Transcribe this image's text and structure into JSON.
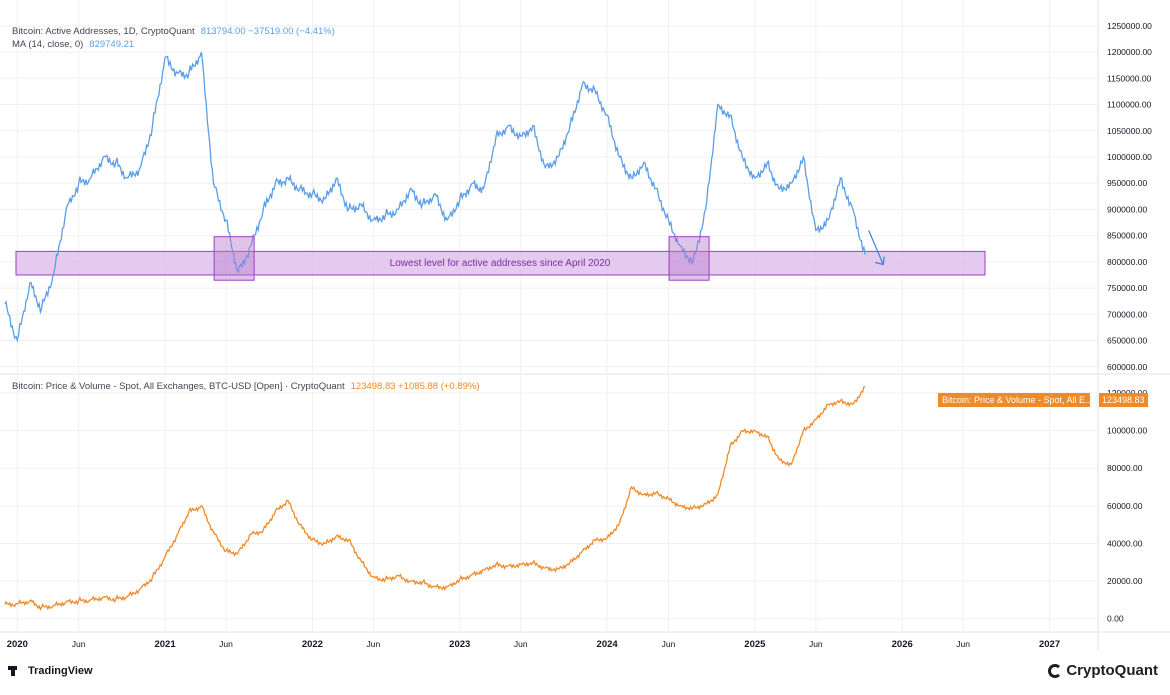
{
  "legend_top": {
    "line1_name": "Bitcoin: Active Addresses, 1D, CryptoQuant",
    "line1_vals": "813794.00  −37519.00 (−4.41%)",
    "line2_name": "MA (14, close, 0)",
    "line2_vals": "829749.21"
  },
  "legend_bottom": {
    "name": "Bitcoin: Price & Volume - Spot, All Exchanges, BTC-USD [Open] · CryptoQuant",
    "vals": "123498.83  +1085.88 (+0.89%)"
  },
  "price_tag": {
    "label": "Bitcoin: Price & Volume - Spot, All E...",
    "value": "123498.83"
  },
  "annotation": "Lowest level for active addresses since April 2020",
  "footer": {
    "left": "TradingView",
    "right": "CryptoQuant"
  },
  "colors": {
    "addresses": "#5b9ee6",
    "price": "#f08a26",
    "band_fill": "#dcb8ea",
    "band_stroke": "#9c3fc2",
    "grid": "#eef0f3",
    "axis_text": "#131722"
  },
  "chart_data": [
    {
      "type": "line",
      "series": [
        {
          "x": [
            "2019-12-01",
            "2020-01-01",
            "2020-02-01",
            "2020-03-01",
            "2020-04-01",
            "2020-05-01",
            "2020-06-01",
            "2020-07-01",
            "2020-08-01",
            "2020-09-01",
            "2020-10-01",
            "2020-11-01",
            "2020-12-01",
            "2021-01-01",
            "2021-02-01",
            "2021-03-01",
            "2021-04-01",
            "2021-05-01",
            "2021-06-01",
            "2021-07-01",
            "2021-08-01",
            "2021-09-01",
            "2021-10-01",
            "2021-11-01",
            "2021-12-01",
            "2022-01-01",
            "2022-02-01",
            "2022-03-01",
            "2022-04-01",
            "2022-05-01",
            "2022-06-01",
            "2022-07-01",
            "2022-08-01",
            "2022-09-01",
            "2022-10-01",
            "2022-11-01",
            "2022-12-01",
            "2023-01-01",
            "2023-02-01",
            "2023-03-01",
            "2023-04-01",
            "2023-05-01",
            "2023-06-01",
            "2023-07-01",
            "2023-08-01",
            "2023-09-01",
            "2023-10-01",
            "2023-11-01",
            "2023-12-01",
            "2024-01-01",
            "2024-02-01",
            "2024-03-01",
            "2024-04-01",
            "2024-05-01",
            "2024-06-01",
            "2024-07-01",
            "2024-08-01",
            "2024-09-01",
            "2024-10-01",
            "2024-11-01",
            "2024-12-01",
            "2025-01-01",
            "2025-02-01",
            "2025-03-01",
            "2025-04-01",
            "2025-05-01",
            "2025-06-01",
            "2025-07-01",
            "2025-08-01",
            "2025-09-01",
            "2025-10-01"
          ],
          "values": [
            720000,
            650000,
            760000,
            710000,
            780000,
            900000,
            950000,
            960000,
            1000000,
            990000,
            960000,
            980000,
            1060000,
            1190000,
            1160000,
            1160000,
            1200000,
            950000,
            880000,
            780000,
            830000,
            900000,
            950000,
            960000,
            940000,
            930000,
            920000,
            960000,
            900000,
            910000,
            880000,
            890000,
            900000,
            940000,
            910000,
            930000,
            880000,
            920000,
            950000,
            940000,
            1040000,
            1060000,
            1040000,
            1060000,
            980000,
            1000000,
            1060000,
            1140000,
            1130000,
            1080000,
            1000000,
            960000,
            990000,
            940000,
            880000,
            830000,
            800000,
            900000,
            1100000,
            1080000,
            1000000,
            960000,
            990000,
            940000,
            950000,
            1000000,
            860000,
            880000,
            960000,
            900000,
            813794
          ]
        }
      ],
      "yticks": [
        600000,
        650000,
        700000,
        750000,
        800000,
        850000,
        900000,
        950000,
        1000000,
        1050000,
        1100000,
        1150000,
        1200000,
        1250000
      ],
      "ylim": [
        590000,
        1265000
      ],
      "band": [
        775000,
        820000
      ]
    },
    {
      "type": "line",
      "series": [
        {
          "x": [
            "2019-12-01",
            "2020-01-01",
            "2020-02-01",
            "2020-03-01",
            "2020-04-01",
            "2020-05-01",
            "2020-06-01",
            "2020-07-01",
            "2020-08-01",
            "2020-09-01",
            "2020-10-01",
            "2020-11-01",
            "2020-12-01",
            "2021-01-01",
            "2021-02-01",
            "2021-03-01",
            "2021-04-01",
            "2021-05-01",
            "2021-06-01",
            "2021-07-01",
            "2021-08-01",
            "2021-09-01",
            "2021-10-01",
            "2021-11-01",
            "2021-12-01",
            "2022-01-01",
            "2022-02-01",
            "2022-03-01",
            "2022-04-01",
            "2022-05-01",
            "2022-06-01",
            "2022-07-01",
            "2022-08-01",
            "2022-09-01",
            "2022-10-01",
            "2022-11-01",
            "2022-12-01",
            "2023-01-01",
            "2023-02-01",
            "2023-03-01",
            "2023-04-01",
            "2023-05-01",
            "2023-06-01",
            "2023-07-01",
            "2023-08-01",
            "2023-09-01",
            "2023-10-01",
            "2023-11-01",
            "2023-12-01",
            "2024-01-01",
            "2024-02-01",
            "2024-03-01",
            "2024-04-01",
            "2024-05-01",
            "2024-06-01",
            "2024-07-01",
            "2024-08-01",
            "2024-09-01",
            "2024-10-01",
            "2024-11-01",
            "2024-12-01",
            "2025-01-01",
            "2025-02-01",
            "2025-03-01",
            "2025-04-01",
            "2025-05-01",
            "2025-06-01",
            "2025-07-01",
            "2025-08-01",
            "2025-09-01",
            "2025-10-01"
          ],
          "values": [
            7500,
            8000,
            9500,
            6000,
            7000,
            9000,
            9500,
            10000,
            11500,
            10500,
            12000,
            16000,
            22000,
            33000,
            45000,
            57000,
            60000,
            46000,
            36000,
            35000,
            45000,
            47000,
            57000,
            63000,
            50000,
            42000,
            40000,
            44000,
            42000,
            31000,
            22000,
            21000,
            23000,
            20000,
            19500,
            17000,
            17000,
            21000,
            23500,
            26000,
            29000,
            28000,
            29000,
            30000,
            27000,
            26500,
            30000,
            36000,
            42000,
            43000,
            51000,
            70000,
            66000,
            67000,
            64000,
            60000,
            59000,
            61000,
            66000,
            92000,
            100000,
            100000,
            97000,
            85000,
            82000,
            100000,
            106000,
            114000,
            116000,
            114000,
            123499
          ]
        }
      ],
      "yticks": [
        0,
        20000,
        40000,
        60000,
        80000,
        100000,
        120000
      ],
      "ylim": [
        -6000,
        129000
      ]
    }
  ],
  "x_axis": {
    "ticks": [
      {
        "label": "2020",
        "date": "2020-01-01"
      },
      {
        "label": "Jun",
        "date": "2020-06-01"
      },
      {
        "label": "2021",
        "date": "2021-01-01"
      },
      {
        "label": "Jun",
        "date": "2021-06-01"
      },
      {
        "label": "2022",
        "date": "2022-01-01"
      },
      {
        "label": "Jun",
        "date": "2022-06-01"
      },
      {
        "label": "2023",
        "date": "2023-01-01"
      },
      {
        "label": "Jun",
        "date": "2023-06-01"
      },
      {
        "label": "2024",
        "date": "2024-01-01"
      },
      {
        "label": "Jun",
        "date": "2024-06-01"
      },
      {
        "label": "2025",
        "date": "2025-01-01"
      },
      {
        "label": "Jun",
        "date": "2025-06-01"
      },
      {
        "label": "2026",
        "date": "2026-01-01"
      },
      {
        "label": "Jun",
        "date": "2026-06-01"
      },
      {
        "label": "2027",
        "date": "2027-01-01"
      }
    ],
    "range": [
      "2019-12-04",
      "2027-05-01"
    ]
  }
}
